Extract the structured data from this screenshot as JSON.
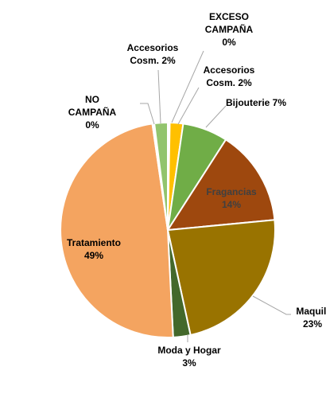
{
  "chart_data": {
    "type": "pie",
    "title": "",
    "start_angle_deg": 90,
    "direction": "clockwise",
    "slices": [
      {
        "label_lines": [
          "EXCESO",
          "CAMPAÑA",
          "0%"
        ],
        "value": 0.3,
        "color": "#ffffff"
      },
      {
        "label_lines": [
          "Accesorios",
          "Cosm. 2%"
        ],
        "value": 2.0,
        "color": "#ffc000"
      },
      {
        "label_lines": [
          "Bijouterie 7%"
        ],
        "value": 6.8,
        "color": "#70ad47"
      },
      {
        "label_lines": [
          "Fragancias",
          "14%"
        ],
        "value": 14.4,
        "color": "#9e480e"
      },
      {
        "label_lines": [
          "Maquill",
          "23%"
        ],
        "value": 23.1,
        "color": "#997300"
      },
      {
        "label_lines": [
          "Moda y Hogar",
          "3%"
        ],
        "value": 2.6,
        "color": "#43682b"
      },
      {
        "label_lines": [
          "Tratamiento",
          "49%"
        ],
        "value": 48.5,
        "color": "#f4a460"
      },
      {
        "label_lines": [
          "NO",
          "CAMPAÑA",
          "0%"
        ],
        "value": 0.3,
        "color": "#ffffff"
      },
      {
        "label_lines": [
          "Accesorios",
          "Cosm. 2%"
        ],
        "value": 2.0,
        "color": "#92c46d"
      }
    ]
  }
}
